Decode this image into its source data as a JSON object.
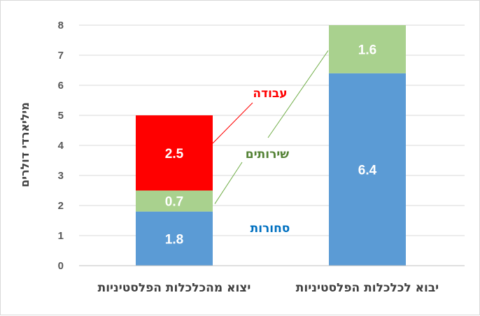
{
  "chart_data": {
    "type": "bar",
    "stacked": true,
    "ylabel": "מיליארדי דולרים",
    "ylim": [
      0,
      8
    ],
    "yticks": [
      "0",
      "1",
      "2",
      "3",
      "4",
      "5",
      "6",
      "7",
      "8"
    ],
    "grid": true,
    "categories": [
      "יצוא מהכלכלות הפלסטיניות",
      "יבוא לכלכלות הפלסטיניות"
    ],
    "series": [
      {
        "name": "סחורות",
        "color": "#5b9bd5",
        "values": [
          1.8,
          6.4
        ],
        "labels": [
          "1.8",
          "6.4"
        ]
      },
      {
        "name": "שירותים",
        "color": "#a9d18e",
        "values": [
          0.7,
          1.6
        ],
        "labels": [
          "0.7",
          "1.6"
        ]
      },
      {
        "name": "עבודה",
        "color": "#ff0000",
        "values": [
          2.5,
          0
        ],
        "labels": [
          "2.5",
          ""
        ]
      }
    ],
    "annotation_colors": [
      "#0070c0",
      "#548235",
      "#ff0000"
    ]
  }
}
